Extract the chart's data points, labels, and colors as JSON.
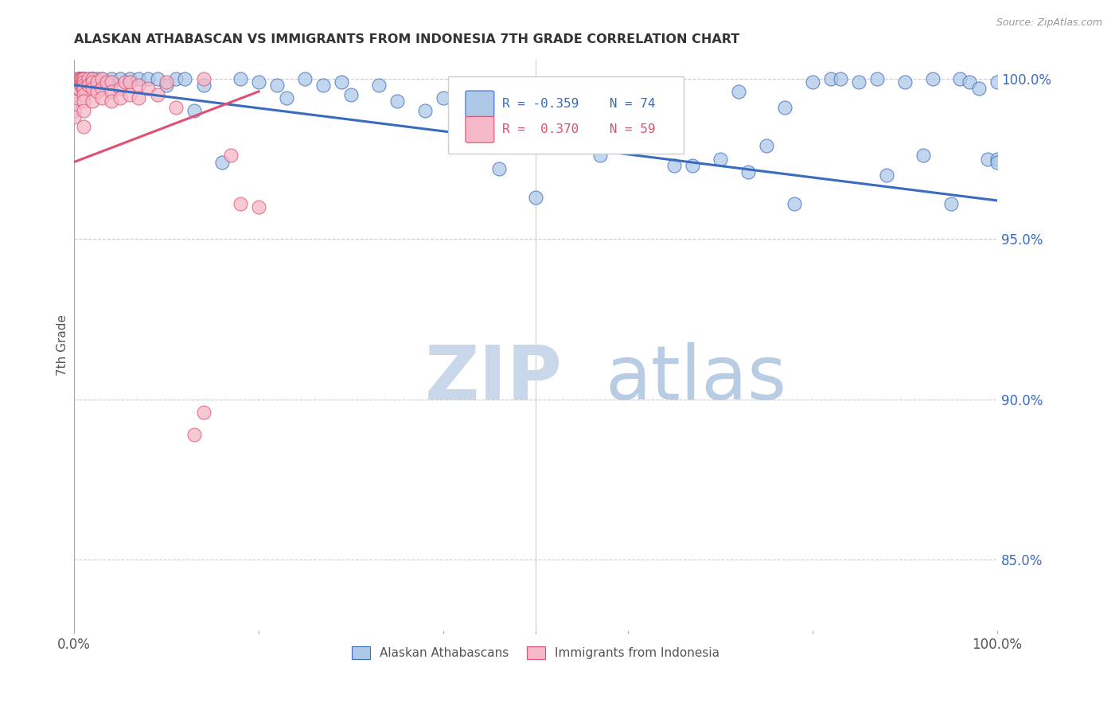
{
  "title": "ALASKAN ATHABASCAN VS IMMIGRANTS FROM INDONESIA 7TH GRADE CORRELATION CHART",
  "source": "Source: ZipAtlas.com",
  "ylabel": "7th Grade",
  "y_tick_values": [
    0.85,
    0.9,
    0.95,
    1.0
  ],
  "legend_label_blue": "Alaskan Athabascans",
  "legend_label_pink": "Immigrants from Indonesia",
  "legend_R_blue": "R = -0.359",
  "legend_N_blue": "N = 74",
  "legend_R_pink": "R =  0.370",
  "legend_N_pink": "N = 59",
  "blue_color": "#aec9e8",
  "blue_line_color": "#3a6bbf",
  "pink_color": "#f5b8c8",
  "pink_line_color": "#e05070",
  "watermark_zip": "ZIP",
  "watermark_atlas": "atlas",
  "watermark_color_zip": "#c8d8ea",
  "watermark_color_atlas": "#b8cce4",
  "blue_x": [
    0.005,
    0.005,
    0.005,
    0.008,
    0.01,
    0.01,
    0.01,
    0.01,
    0.01,
    0.015,
    0.02,
    0.02,
    0.02,
    0.025,
    0.03,
    0.04,
    0.05,
    0.06,
    0.07,
    0.08,
    0.09,
    0.1,
    0.11,
    0.12,
    0.13,
    0.14,
    0.16,
    0.18,
    0.2,
    0.22,
    0.23,
    0.25,
    0.27,
    0.29,
    0.3,
    0.33,
    0.35,
    0.38,
    0.4,
    0.43,
    0.46,
    0.48,
    0.5,
    0.52,
    0.55,
    0.57,
    0.6,
    0.62,
    0.63,
    0.65,
    0.67,
    0.7,
    0.72,
    0.73,
    0.75,
    0.77,
    0.78,
    0.8,
    0.82,
    0.83,
    0.85,
    0.87,
    0.88,
    0.9,
    0.92,
    0.93,
    0.95,
    0.96,
    0.97,
    0.98,
    0.99,
    1.0,
    1.0,
    1.0
  ],
  "blue_y": [
    1.0,
    1.0,
    1.0,
    1.0,
    1.0,
    1.0,
    1.0,
    1.0,
    0.999,
    1.0,
    1.0,
    1.0,
    1.0,
    1.0,
    1.0,
    1.0,
    1.0,
    1.0,
    1.0,
    1.0,
    1.0,
    0.998,
    1.0,
    1.0,
    0.99,
    0.998,
    0.974,
    1.0,
    0.999,
    0.998,
    0.994,
    1.0,
    0.998,
    0.999,
    0.995,
    0.998,
    0.993,
    0.99,
    0.994,
    0.992,
    0.972,
    0.997,
    0.963,
    0.994,
    0.981,
    0.976,
    0.991,
    0.994,
    0.981,
    0.973,
    0.973,
    0.975,
    0.996,
    0.971,
    0.979,
    0.991,
    0.961,
    0.999,
    1.0,
    1.0,
    0.999,
    1.0,
    0.97,
    0.999,
    0.976,
    1.0,
    0.961,
    1.0,
    0.999,
    0.997,
    0.975,
    0.975,
    0.999,
    0.974
  ],
  "pink_x": [
    0.0,
    0.0,
    0.0,
    0.0,
    0.0,
    0.0,
    0.0,
    0.0,
    0.0,
    0.005,
    0.005,
    0.005,
    0.007,
    0.007,
    0.008,
    0.008,
    0.009,
    0.009,
    0.009,
    0.01,
    0.01,
    0.01,
    0.01,
    0.01,
    0.01,
    0.01,
    0.01,
    0.015,
    0.015,
    0.02,
    0.02,
    0.02,
    0.02,
    0.025,
    0.025,
    0.03,
    0.03,
    0.03,
    0.035,
    0.04,
    0.04,
    0.04,
    0.05,
    0.05,
    0.055,
    0.06,
    0.06,
    0.07,
    0.07,
    0.08,
    0.09,
    0.1,
    0.11,
    0.13,
    0.14,
    0.14,
    0.17,
    0.18,
    0.2
  ],
  "pink_y": [
    1.0,
    0.999,
    0.998,
    0.997,
    0.996,
    0.995,
    0.993,
    0.99,
    0.988,
    1.0,
    0.999,
    0.997,
    1.0,
    0.999,
    1.0,
    0.998,
    1.0,
    0.999,
    0.997,
    1.0,
    0.999,
    0.998,
    0.997,
    0.995,
    0.993,
    0.99,
    0.985,
    1.0,
    0.998,
    1.0,
    0.999,
    0.997,
    0.993,
    0.999,
    0.996,
    1.0,
    0.997,
    0.994,
    0.999,
    0.999,
    0.996,
    0.993,
    0.997,
    0.994,
    0.999,
    0.999,
    0.995,
    0.998,
    0.994,
    0.997,
    0.995,
    0.999,
    0.991,
    0.889,
    1.0,
    0.896,
    0.976,
    0.961,
    0.96
  ],
  "blue_trend_x": [
    0.0,
    1.0
  ],
  "blue_trend_y": [
    0.998,
    0.962
  ],
  "pink_trend_x": [
    0.0,
    0.2
  ],
  "pink_trend_y": [
    0.974,
    0.996
  ],
  "ylim_min": 0.828,
  "ylim_max": 1.006,
  "xlim_min": 0.0,
  "xlim_max": 1.0
}
